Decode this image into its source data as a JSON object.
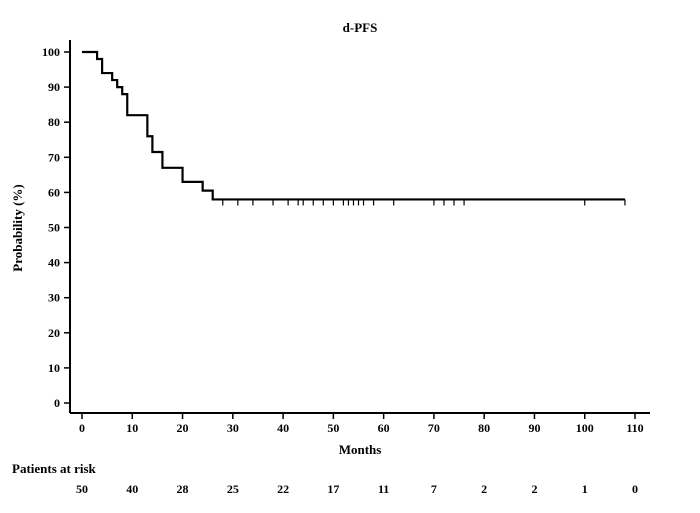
{
  "chart_data": {
    "type": "line",
    "title": "d-PFS",
    "xlabel": "Months",
    "ylabel": "Probability (%)",
    "xlim": [
      0,
      110
    ],
    "ylim": [
      0,
      100
    ],
    "x_ticks": [
      0,
      10,
      20,
      30,
      40,
      50,
      60,
      70,
      80,
      90,
      100,
      110
    ],
    "y_ticks": [
      0,
      10,
      20,
      30,
      40,
      50,
      60,
      70,
      80,
      90,
      100
    ],
    "grid": false,
    "series": [
      {
        "steps": [
          [
            0,
            100
          ],
          [
            3,
            98
          ],
          [
            4,
            94
          ],
          [
            6,
            92
          ],
          [
            7,
            90
          ],
          [
            8,
            88
          ],
          [
            9,
            82
          ],
          [
            13,
            76
          ],
          [
            14,
            71.5
          ],
          [
            16,
            67
          ],
          [
            20,
            63
          ],
          [
            24,
            60.5
          ],
          [
            26,
            58
          ],
          [
            108,
            58
          ]
        ],
        "censored_x": [
          28,
          31,
          34,
          38,
          41,
          43,
          44,
          46,
          48,
          50,
          52,
          53,
          54,
          55,
          56,
          58,
          62,
          70,
          72,
          74,
          76,
          100,
          108
        ]
      }
    ],
    "risk_table": {
      "label": "Patients at risk",
      "times": [
        0,
        10,
        20,
        30,
        40,
        50,
        60,
        70,
        80,
        90,
        100,
        110
      ],
      "counts": [
        "50",
        "40",
        "28",
        "25",
        "22",
        "17",
        "11",
        "7",
        "2",
        "2",
        "1",
        "0"
      ]
    }
  }
}
